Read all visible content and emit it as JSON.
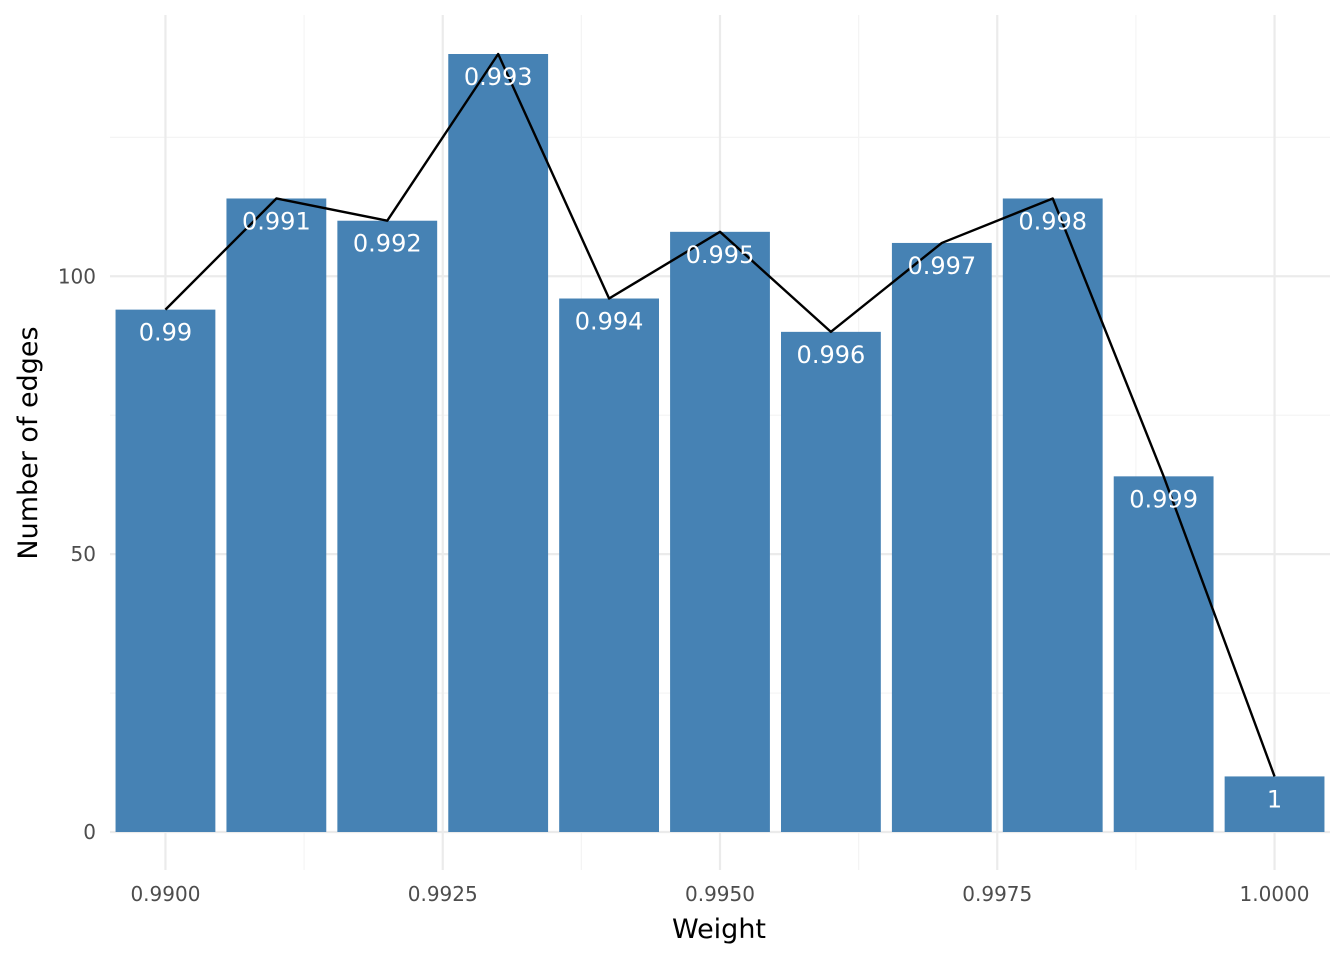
{
  "chart_data": {
    "type": "bar",
    "xlabel": "Weight",
    "ylabel": "Number of edges",
    "xlim": [
      0.9895,
      1.0005
    ],
    "ylim": [
      0,
      140
    ],
    "grid": true,
    "legend": "none",
    "x_ticks": [
      {
        "value": 0.99,
        "label": "0.9900"
      },
      {
        "value": 0.9925,
        "label": "0.9925"
      },
      {
        "value": 0.995,
        "label": "0.9950"
      },
      {
        "value": 0.9975,
        "label": "0.9975"
      },
      {
        "value": 1.0,
        "label": "1.0000"
      }
    ],
    "y_ticks": [
      {
        "value": 0,
        "label": "0"
      },
      {
        "value": 50,
        "label": "50"
      },
      {
        "value": 100,
        "label": "100"
      }
    ],
    "bar_width": 0.0009,
    "bars": [
      {
        "x": 0.99,
        "value": 94,
        "label": "0.99"
      },
      {
        "x": 0.991,
        "value": 114,
        "label": "0.991"
      },
      {
        "x": 0.992,
        "value": 110,
        "label": "0.992"
      },
      {
        "x": 0.993,
        "value": 140,
        "label": "0.993"
      },
      {
        "x": 0.994,
        "value": 96,
        "label": "0.994"
      },
      {
        "x": 0.995,
        "value": 108,
        "label": "0.995"
      },
      {
        "x": 0.996,
        "value": 90,
        "label": "0.996"
      },
      {
        "x": 0.997,
        "value": 106,
        "label": "0.997"
      },
      {
        "x": 0.998,
        "value": 114,
        "label": "0.998"
      },
      {
        "x": 0.999,
        "value": 64,
        "label": "0.999"
      },
      {
        "x": 1.0,
        "value": 10,
        "label": "1"
      }
    ],
    "line": {
      "x": [
        0.99,
        0.991,
        0.992,
        0.993,
        0.994,
        0.995,
        0.996,
        0.997,
        0.998,
        0.999,
        1.0
      ],
      "y": [
        94,
        114,
        110,
        140,
        96,
        108,
        90,
        106,
        114,
        64,
        10
      ]
    },
    "colors": {
      "bar": "#4682b4",
      "line": "#000000",
      "grid_major": "#ebebeb",
      "grid_minor": "#f4f4f4",
      "bar_label": "#ffffff"
    }
  }
}
